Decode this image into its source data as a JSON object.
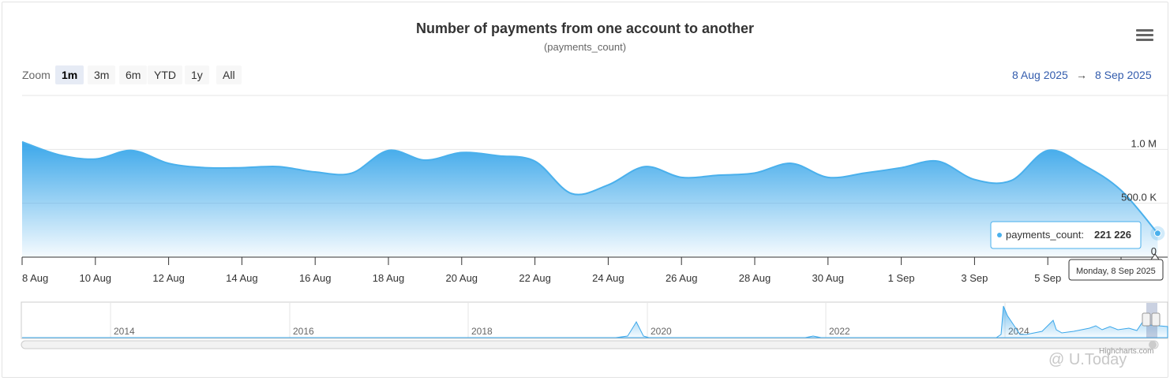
{
  "header": {
    "title": "Number of payments from one account to another",
    "subtitle": "(payments_count)"
  },
  "toolbar": {
    "zoom_label": "Zoom",
    "zoom_buttons": [
      "1m",
      "3m",
      "6m",
      "YTD",
      "1y",
      "All"
    ],
    "active_zoom": "1m",
    "range_from": "8 Aug 2025",
    "range_arrow": "→",
    "range_to": "8 Sep 2025",
    "menu_icon": "hamburger-menu-icon"
  },
  "tooltip": {
    "series_label": "payments_count:",
    "value": "221 226",
    "date_label": "Monday, 8 Sep 2025"
  },
  "navigator": {
    "year_labels": [
      "2014",
      "2016",
      "2018",
      "2020",
      "2022",
      "2024"
    ]
  },
  "footer": {
    "credits": "Highcharts.com",
    "watermark": "@ U.Today"
  },
  "colors": {
    "series": "#4ab0ec",
    "accent_link": "#335cad",
    "active_zoom_bg": "#e6ebf5"
  },
  "chart_data": {
    "type": "area",
    "title": "Number of payments from one account to another",
    "subtitle": "(payments_count)",
    "series": [
      {
        "name": "payments_count",
        "x": [
          "2025-08-08",
          "2025-08-09",
          "2025-08-10",
          "2025-08-11",
          "2025-08-12",
          "2025-08-13",
          "2025-08-14",
          "2025-08-15",
          "2025-08-16",
          "2025-08-17",
          "2025-08-18",
          "2025-08-19",
          "2025-08-20",
          "2025-08-21",
          "2025-08-22",
          "2025-08-23",
          "2025-08-24",
          "2025-08-25",
          "2025-08-26",
          "2025-08-27",
          "2025-08-28",
          "2025-08-29",
          "2025-08-30",
          "2025-08-31",
          "2025-09-01",
          "2025-09-02",
          "2025-09-03",
          "2025-09-04",
          "2025-09-05",
          "2025-09-06",
          "2025-09-07",
          "2025-09-08"
        ],
        "values": [
          1070000,
          950000,
          910000,
          990000,
          870000,
          830000,
          830000,
          840000,
          790000,
          780000,
          990000,
          900000,
          970000,
          940000,
          890000,
          590000,
          670000,
          840000,
          740000,
          760000,
          780000,
          870000,
          740000,
          780000,
          830000,
          890000,
          720000,
          710000,
          990000,
          850000,
          620000,
          221226
        ]
      }
    ],
    "x_tick_labels": [
      "8 Aug",
      "10 Aug",
      "12 Aug",
      "14 Aug",
      "16 Aug",
      "18 Aug",
      "20 Aug",
      "22 Aug",
      "24 Aug",
      "26 Aug",
      "28 Aug",
      "30 Aug",
      "1 Sep",
      "3 Sep",
      "5 Sep"
    ],
    "y_tick_labels": [
      "0",
      "500.0 K",
      "1.0 M"
    ],
    "ylim": [
      0,
      1500000
    ],
    "grid": true,
    "legend": false
  }
}
